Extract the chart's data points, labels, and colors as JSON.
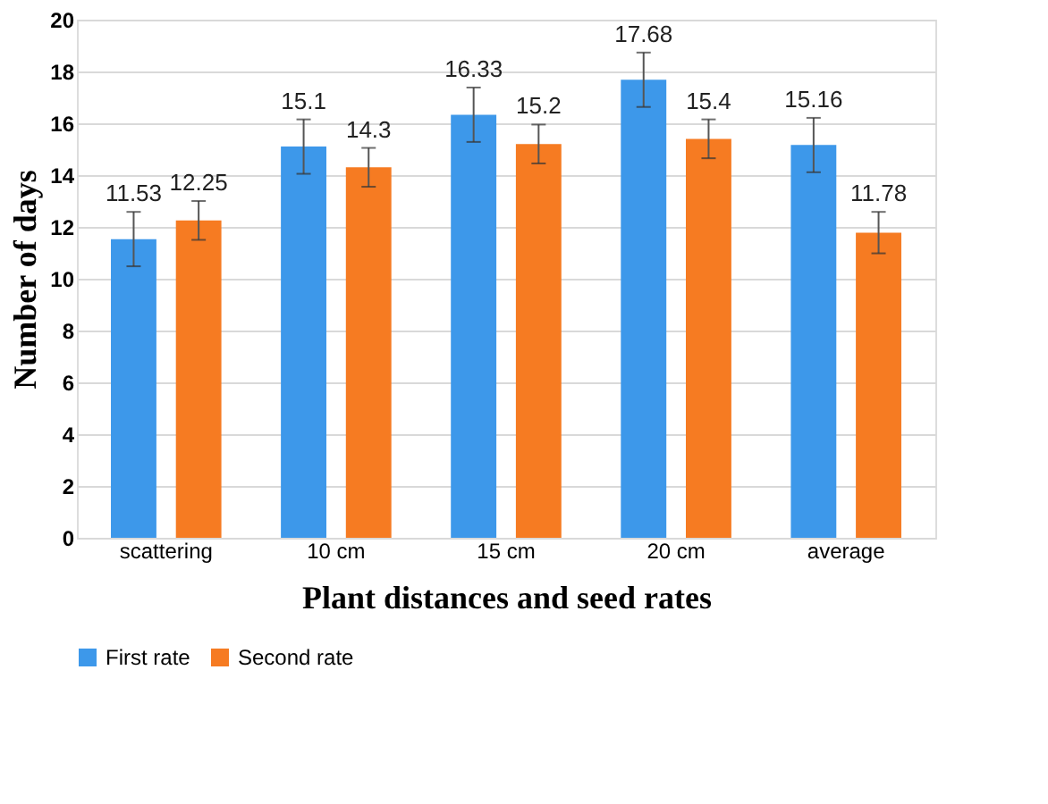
{
  "chart_data": {
    "type": "bar",
    "xlabel": "Plant distances and seed rates",
    "ylabel": "Number of days",
    "categories": [
      "scattering",
      "10 cm",
      "15 cm",
      "20 cm",
      "average"
    ],
    "series": [
      {
        "name": "First rate",
        "color": "#3d98ea",
        "values": [
          11.53,
          15.1,
          16.33,
          17.68,
          15.16
        ],
        "errors": [
          1.05,
          1.05,
          1.05,
          1.05,
          1.05
        ]
      },
      {
        "name": "Second rate",
        "color": "#f67b22",
        "values": [
          12.25,
          14.3,
          15.2,
          15.4,
          11.78
        ],
        "errors": [
          0.75,
          0.75,
          0.75,
          0.75,
          0.8
        ]
      }
    ],
    "ylim": [
      0,
      20
    ],
    "yticks": [
      0,
      2,
      4,
      6,
      8,
      10,
      12,
      14,
      16,
      18,
      20
    ],
    "data_labels": true,
    "grid": "y",
    "legend": "bottom"
  }
}
